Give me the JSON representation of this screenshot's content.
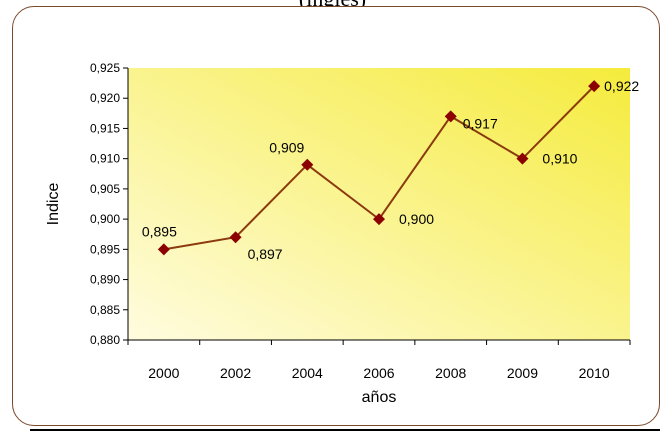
{
  "header_fragment": "(ingles)",
  "chart_data": {
    "type": "line",
    "x": [
      "2000",
      "2002",
      "2004",
      "2006",
      "2008",
      "2009",
      "2010"
    ],
    "series": [
      {
        "values": [
          0.895,
          0.897,
          0.909,
          0.9,
          0.917,
          0.91,
          0.922
        ]
      }
    ],
    "data_labels": [
      "0,895",
      "0,897",
      "0,909",
      "0,900",
      "0,917",
      "0,910",
      "0,922"
    ],
    "ylim": [
      0.88,
      0.925
    ],
    "yticks": [
      "0,880",
      "0,885",
      "0,890",
      "0,895",
      "0,900",
      "0,905",
      "0,910",
      "0,915",
      "0,920",
      "0,925"
    ],
    "xlabel": "años",
    "ylabel": "Indice",
    "grid": false,
    "legend": "none",
    "colors": {
      "line": "#8b3a0e",
      "marker": "#8b0000",
      "plot_gradient_start": "#fffce0",
      "plot_gradient_end": "#f5eb3c"
    }
  }
}
